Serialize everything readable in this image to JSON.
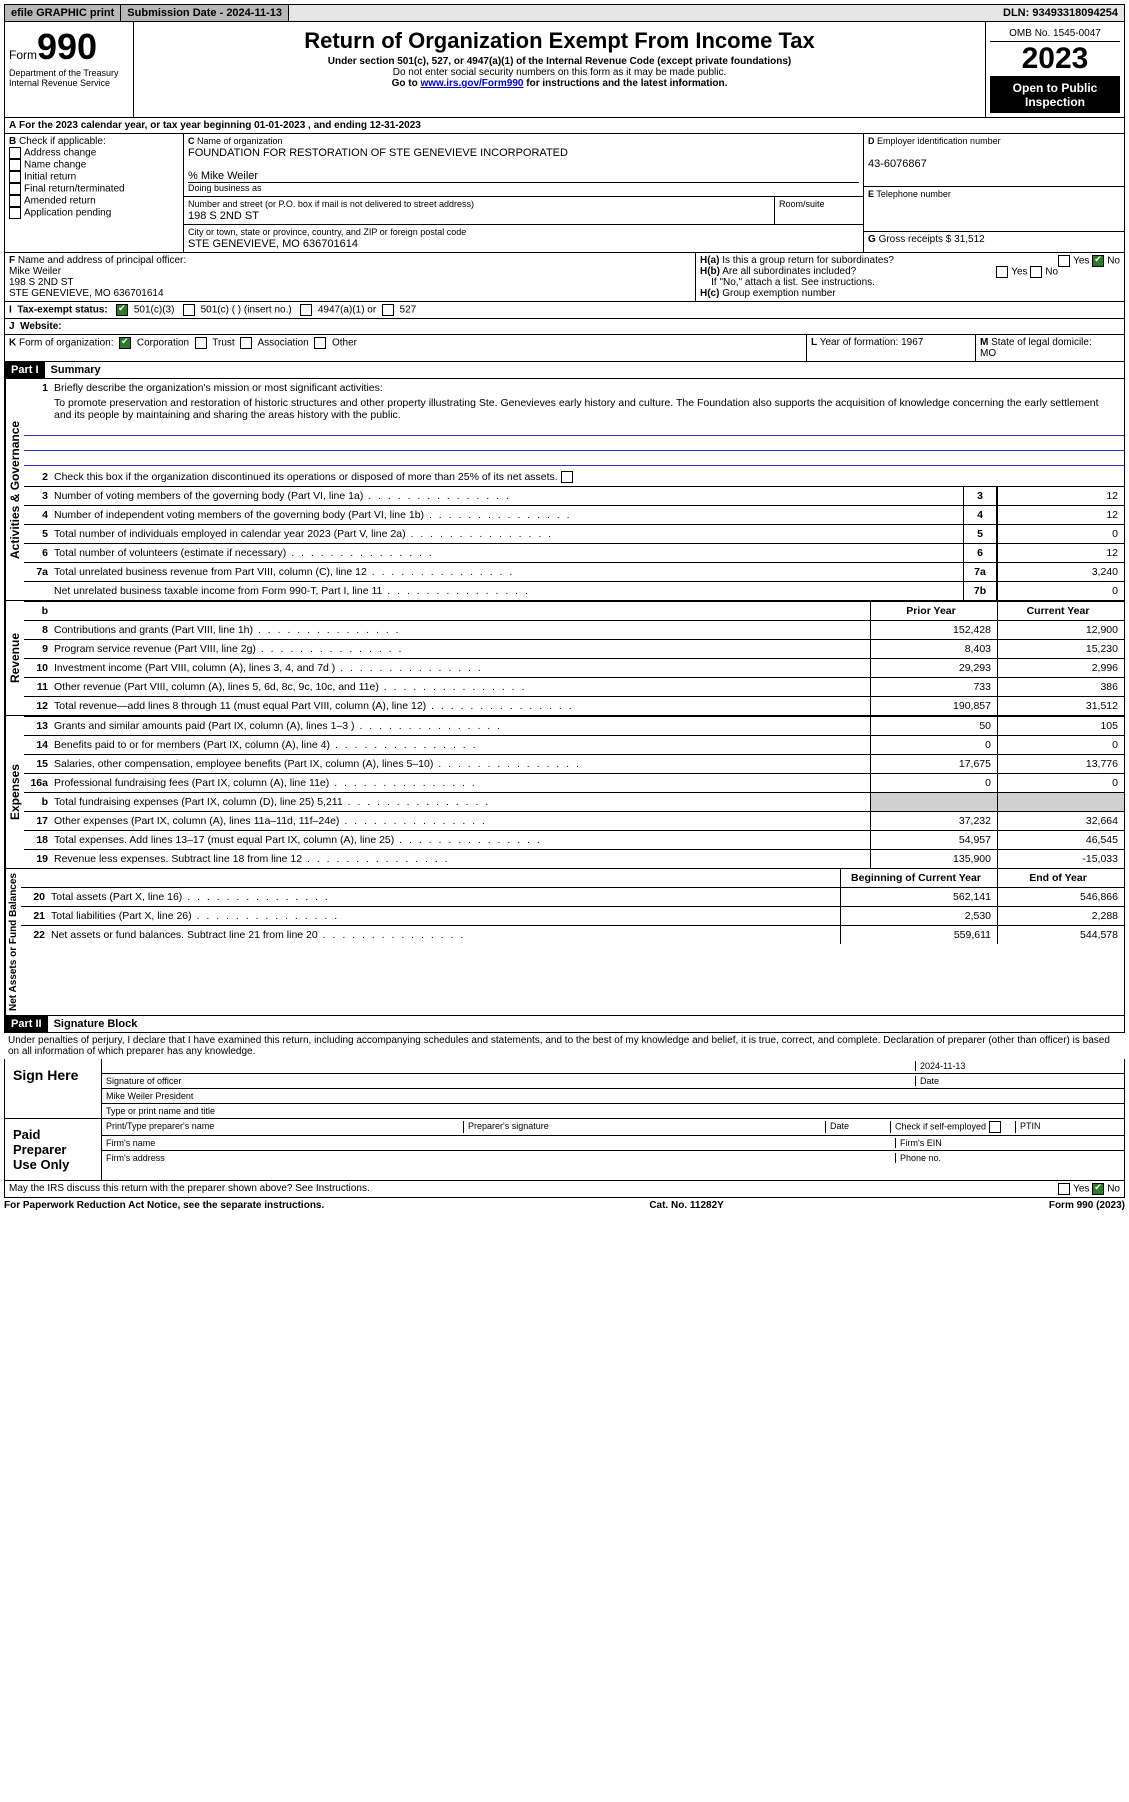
{
  "topbar": {
    "efile": "efile GRAPHIC print",
    "submission_label": "Submission Date - 2024-11-13",
    "dln": "DLN: 93493318094254"
  },
  "header": {
    "form_word": "Form",
    "form_num": "990",
    "dept1": "Department of the Treasury",
    "dept2": "Internal Revenue Service",
    "title": "Return of Organization Exempt From Income Tax",
    "sub1": "Under section 501(c), 527, or 4947(a)(1) of the Internal Revenue Code (except private foundations)",
    "sub2": "Do not enter social security numbers on this form as it may be made public.",
    "sub3_pre": "Go to ",
    "sub3_link": "www.irs.gov/Form990",
    "sub3_post": " for instructions and the latest information.",
    "omb": "OMB No. 1545-0047",
    "year": "2023",
    "inspection": "Open to Public Inspection"
  },
  "lineA": "For the 2023 calendar year, or tax year beginning 01-01-2023   , and ending 12-31-2023",
  "boxB": {
    "label": "Check if applicable:",
    "opts": [
      "Address change",
      "Name change",
      "Initial return",
      "Final return/terminated",
      "Amended return",
      "Application pending"
    ],
    "letter": "B"
  },
  "boxC": {
    "name_label": "Name of organization",
    "name": "FOUNDATION FOR RESTORATION OF STE GENEVIEVE INCORPORATED",
    "care_of": "% Mike Weiler",
    "dba_label": "Doing business as",
    "addr_label": "Number and street (or P.O. box if mail is not delivered to street address)",
    "room_label": "Room/suite",
    "addr": "198 S 2ND ST",
    "city_label": "City or town, state or province, country, and ZIP or foreign postal code",
    "city": "STE GENEVIEVE, MO  636701614",
    "letter": "C"
  },
  "boxD": {
    "label": "Employer identification number",
    "value": "43-6076867",
    "letter": "D"
  },
  "boxE": {
    "label": "Telephone number",
    "letter": "E"
  },
  "boxG": {
    "label": "Gross receipts $",
    "value": "31,512",
    "letter": "G"
  },
  "boxF": {
    "label": "Name and address of principal officer:",
    "name": "Mike Weiler",
    "addr1": "198 S 2ND ST",
    "addr2": "STE GENEVIEVE, MO  636701614",
    "letter": "F"
  },
  "boxH": {
    "a": "Is this a group return for subordinates?",
    "b": "Are all subordinates included?",
    "b_note": "If \"No,\" attach a list. See instructions.",
    "c": "Group exemption number",
    "yes": "Yes",
    "no": "No"
  },
  "boxI": {
    "letter": "I",
    "label": "Tax-exempt status:",
    "o1": "501(c)(3)",
    "o2": "501(c) (   ) (insert no.)",
    "o3": "4947(a)(1) or",
    "o4": "527"
  },
  "boxJ": {
    "letter": "J",
    "label": "Website:"
  },
  "boxK": {
    "letter": "K",
    "label": "Form of organization:",
    "o1": "Corporation",
    "o2": "Trust",
    "o3": "Association",
    "o4": "Other"
  },
  "boxL": {
    "letter": "L",
    "label": "Year of formation:",
    "value": "1967"
  },
  "boxM": {
    "letter": "M",
    "label": "State of legal domicile:",
    "value": "MO"
  },
  "partI": {
    "header": "Part I",
    "title": "Summary"
  },
  "summary": {
    "activities_label": "Activities & Governance",
    "revenue_label": "Revenue",
    "expenses_label": "Expenses",
    "netassets_label": "Net Assets or Fund Balances",
    "q1": "Briefly describe the organization's mission or most significant activities:",
    "mission": "To promote preservation and restoration of historic structures and other property illustrating Ste. Genevieves early history and culture. The Foundation also supports the acquisition of knowledge concerning the early settlement and its people by maintaining and sharing the areas history with the public.",
    "q2": "Check this box        if the organization discontinued its operations or disposed of more than 25% of its net assets.",
    "lines_gov": [
      {
        "n": "3",
        "d": "Number of voting members of the governing body (Part VI, line 1a)",
        "b": "3",
        "v": "12"
      },
      {
        "n": "4",
        "d": "Number of independent voting members of the governing body (Part VI, line 1b)",
        "b": "4",
        "v": "12"
      },
      {
        "n": "5",
        "d": "Total number of individuals employed in calendar year 2023 (Part V, line 2a)",
        "b": "5",
        "v": "0"
      },
      {
        "n": "6",
        "d": "Total number of volunteers (estimate if necessary)",
        "b": "6",
        "v": "12"
      },
      {
        "n": "7a",
        "d": "Total unrelated business revenue from Part VIII, column (C), line 12",
        "b": "7a",
        "v": "3,240"
      },
      {
        "n": "",
        "d": "Net unrelated business taxable income from Form 990-T, Part I, line 11",
        "b": "7b",
        "v": "0"
      }
    ],
    "col_headers": {
      "b": "b",
      "prior": "Prior Year",
      "current": "Current Year"
    },
    "lines_rev": [
      {
        "n": "8",
        "d": "Contributions and grants (Part VIII, line 1h)",
        "p": "152,428",
        "c": "12,900"
      },
      {
        "n": "9",
        "d": "Program service revenue (Part VIII, line 2g)",
        "p": "8,403",
        "c": "15,230"
      },
      {
        "n": "10",
        "d": "Investment income (Part VIII, column (A), lines 3, 4, and 7d )",
        "p": "29,293",
        "c": "2,996"
      },
      {
        "n": "11",
        "d": "Other revenue (Part VIII, column (A), lines 5, 6d, 8c, 9c, 10c, and 11e)",
        "p": "733",
        "c": "386"
      },
      {
        "n": "12",
        "d": "Total revenue—add lines 8 through 11 (must equal Part VIII, column (A), line 12)",
        "p": "190,857",
        "c": "31,512"
      }
    ],
    "lines_exp": [
      {
        "n": "13",
        "d": "Grants and similar amounts paid (Part IX, column (A), lines 1–3 )",
        "p": "50",
        "c": "105"
      },
      {
        "n": "14",
        "d": "Benefits paid to or for members (Part IX, column (A), line 4)",
        "p": "0",
        "c": "0"
      },
      {
        "n": "15",
        "d": "Salaries, other compensation, employee benefits (Part IX, column (A), lines 5–10)",
        "p": "17,675",
        "c": "13,776"
      },
      {
        "n": "16a",
        "d": "Professional fundraising fees (Part IX, column (A), line 11e)",
        "p": "0",
        "c": "0"
      },
      {
        "n": "b",
        "d": "Total fundraising expenses (Part IX, column (D), line 25) 5,211",
        "p": "",
        "c": "",
        "shaded": true
      },
      {
        "n": "17",
        "d": "Other expenses (Part IX, column (A), lines 11a–11d, 11f–24e)",
        "p": "37,232",
        "c": "32,664"
      },
      {
        "n": "18",
        "d": "Total expenses. Add lines 13–17 (must equal Part IX, column (A), line 25)",
        "p": "54,957",
        "c": "46,545"
      },
      {
        "n": "19",
        "d": "Revenue less expenses. Subtract line 18 from line 12",
        "p": "135,900",
        "c": "-15,033"
      }
    ],
    "col_headers2": {
      "prior": "Beginning of Current Year",
      "current": "End of Year"
    },
    "lines_net": [
      {
        "n": "20",
        "d": "Total assets (Part X, line 16)",
        "p": "562,141",
        "c": "546,866"
      },
      {
        "n": "21",
        "d": "Total liabilities (Part X, line 26)",
        "p": "2,530",
        "c": "2,288"
      },
      {
        "n": "22",
        "d": "Net assets or fund balances. Subtract line 21 from line 20",
        "p": "559,611",
        "c": "544,578"
      }
    ]
  },
  "partII": {
    "header": "Part II",
    "title": "Signature Block"
  },
  "perjury": "Under penalties of perjury, I declare that I have examined this return, including accompanying schedules and statements, and to the best of my knowledge and belief, it is true, correct, and complete. Declaration of preparer (other than officer) is based on all information of which preparer has any knowledge.",
  "sign": {
    "sign_here": "Sign Here",
    "sig_officer": "Signature of officer",
    "sig_name": "Mike Weiler President",
    "sig_type": "Type or print name and title",
    "date_label": "Date",
    "date": "2024-11-13",
    "paid": "Paid Preparer Use Only",
    "prep_name": "Print/Type preparer's name",
    "prep_sig": "Preparer's signature",
    "check_if": "Check        if self-employed",
    "ptin": "PTIN",
    "firm_name": "Firm's name",
    "firm_ein": "Firm's EIN",
    "firm_addr": "Firm's address",
    "phone": "Phone no."
  },
  "discuss": "May the IRS discuss this return with the preparer shown above? See Instructions.",
  "footer": {
    "left": "For Paperwork Reduction Act Notice, see the separate instructions.",
    "mid": "Cat. No. 11282Y",
    "right": "Form 990 (2023)"
  }
}
